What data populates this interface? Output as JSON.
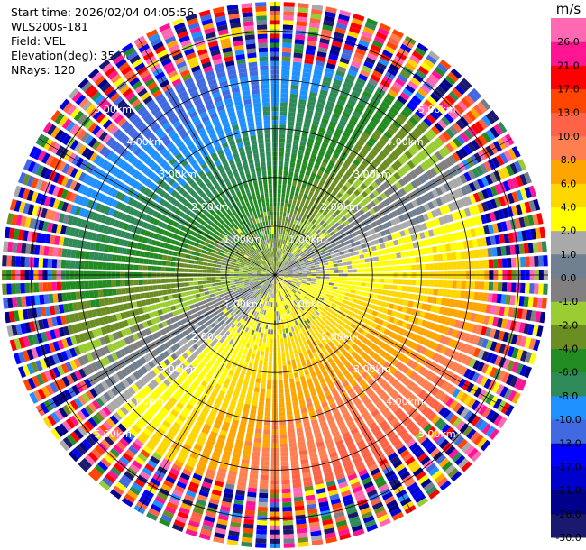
{
  "header": {
    "start_time": "Start time: 2026/02/04 04:05:56",
    "instrument": "WLS200s-181",
    "field": "Field: VEL",
    "elevation": "Elevation(deg): 35.00",
    "nrays": "NRays: 120"
  },
  "chart_data": {
    "type": "ppi",
    "field": "VEL",
    "units": "m/s",
    "n_rays": 120,
    "max_range_km": 5.6,
    "range_rings_km": [
      1,
      2,
      3,
      4,
      5
    ],
    "ring_labels": [
      "1.00km",
      "2.00km",
      "3.00km",
      "4.00km",
      "5.00km"
    ],
    "spokes_deg": [
      0,
      30,
      60,
      90,
      120,
      150,
      180,
      210,
      240,
      270,
      300,
      330
    ],
    "colorbar": {
      "boundaries": [
        -30,
        -26,
        -21,
        -17,
        -13,
        -10,
        -8,
        -6,
        -4,
        -2,
        -1,
        0,
        1,
        2,
        4,
        6,
        8,
        10,
        13,
        17,
        21,
        26,
        30
      ],
      "tick_labels": [
        "-30.0",
        "-26.0",
        "-21.0",
        "-17.0",
        "-13.0",
        "-10.0",
        "-8.0",
        "-6.0",
        "-4.0",
        "-2.0",
        "-1.0",
        "0.0",
        "1.0",
        "2.0",
        "4.0",
        "6.0",
        "8.0",
        "10.0",
        "13.0",
        "17.0",
        "21.0",
        "26.0"
      ],
      "colors": [
        "#191970",
        "#00008b",
        "#0000cd",
        "#0000ff",
        "#4169e1",
        "#1e90ff",
        "#2e8b57",
        "#228b22",
        "#6b8e23",
        "#9acd32",
        "#808080",
        "#708090",
        "#a9a9a9",
        "#ffff00",
        "#ffd700",
        "#ffa500",
        "#ff7f50",
        "#ff6347",
        "#ff4500",
        "#ff0000",
        "#ff1493",
        "#ff69b4"
      ]
    },
    "approx_field_pattern": "negative velocities (greens/blues) toward north-west, positive velocities (yellow/orange/red) toward south-east, noisy folded values beyond ~4.3 km"
  }
}
